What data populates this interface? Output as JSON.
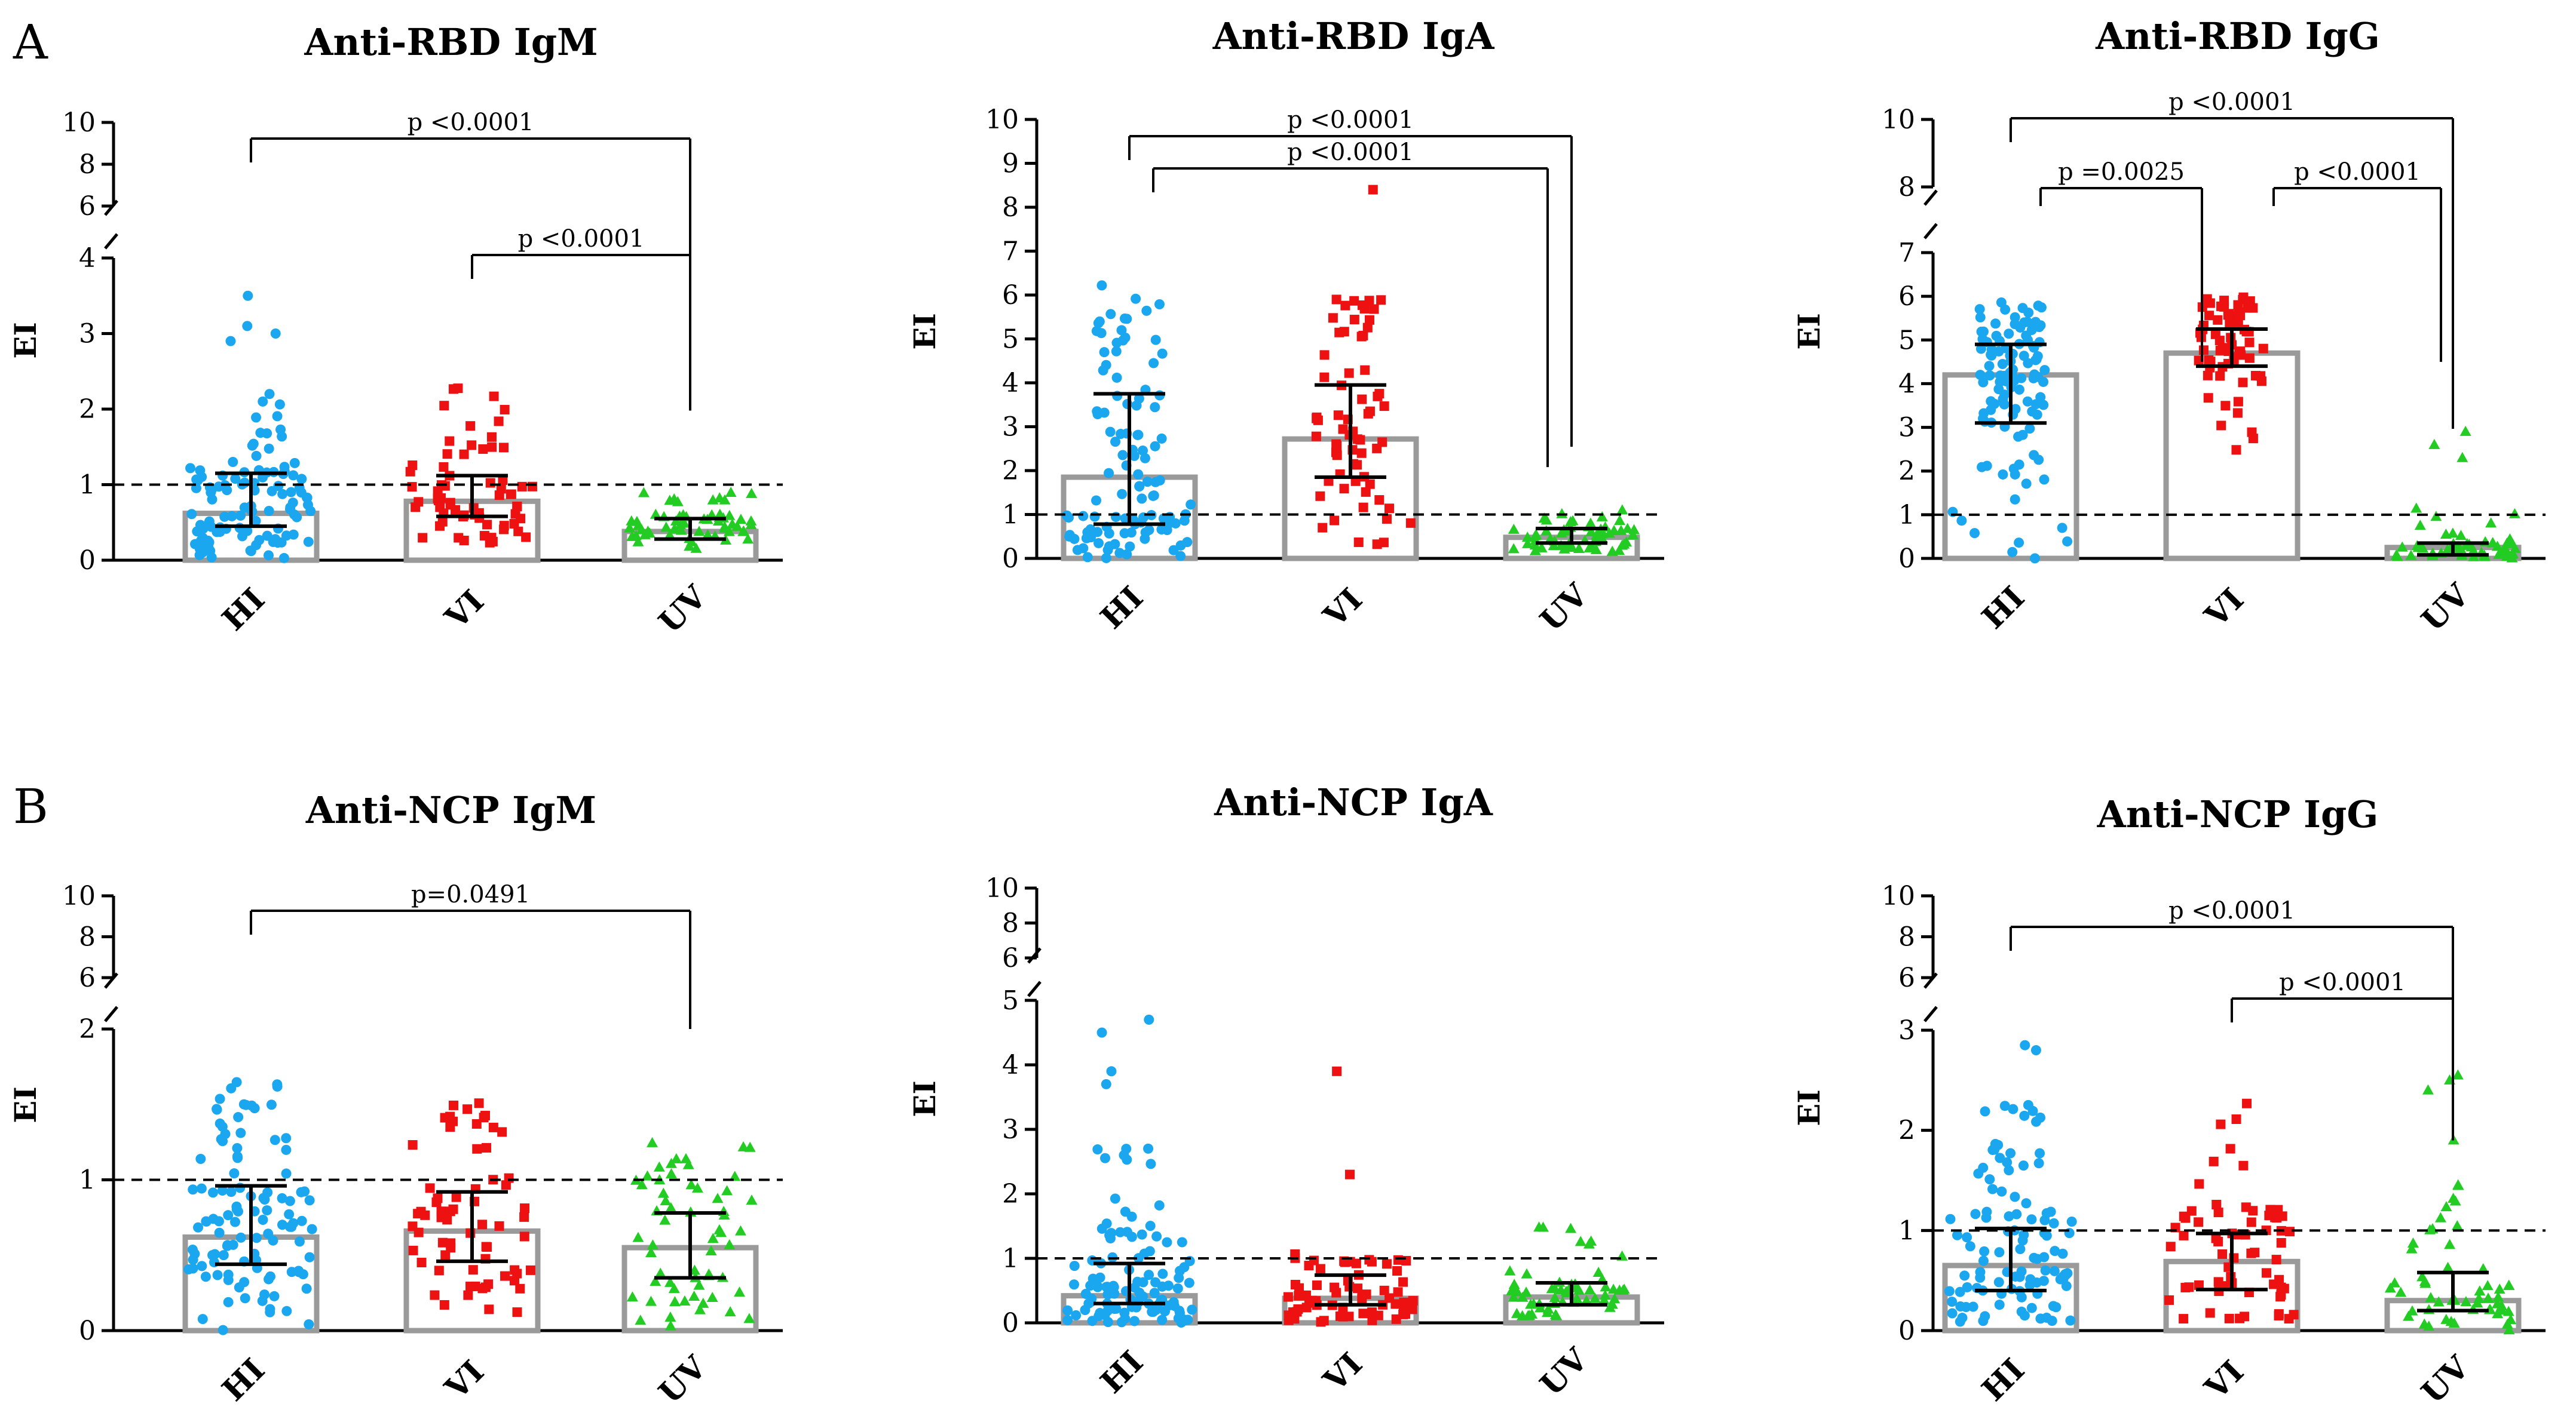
{
  "panel_labels": [
    "A",
    "B"
  ],
  "colors": {
    "HI": "#1aa7f0",
    "VI": "#ee1111",
    "UV": "#22cc22",
    "bar": "#9a9a9a",
    "axis": "#000000"
  },
  "chart_data": [
    {
      "type": "bar",
      "title": "Anti-RBD IgM",
      "ylabel": "EI",
      "categories": [
        "HI",
        "VI",
        "UV"
      ],
      "ylim": [
        0,
        10
      ],
      "axis_break": [
        4,
        5
      ],
      "lower_ticks": [
        0,
        1,
        2,
        3,
        4
      ],
      "upper_ticks": [
        6,
        8,
        10
      ],
      "cutoff": 1.0,
      "medians": [
        0.62,
        0.78,
        0.38
      ],
      "iqr": [
        [
          0.45,
          1.15
        ],
        [
          0.58,
          1.12
        ],
        [
          0.28,
          0.55
        ]
      ],
      "points": [
        {
          "group": "HI",
          "n": 110,
          "ranges": [
            [
              0.02,
              0.6,
              0.42
            ],
            [
              0.6,
              1.2,
              0.42
            ],
            [
              1.2,
              2.1,
              0.14
            ]
          ],
          "extra": [
            3.5,
            3.1,
            3.0,
            2.9,
            2.2,
            2.1
          ]
        },
        {
          "group": "VI",
          "n": 66,
          "ranges": [
            [
              0.2,
              0.8,
              0.5
            ],
            [
              0.8,
              1.5,
              0.35
            ],
            [
              1.5,
              2.45,
              0.15
            ]
          ],
          "extra": []
        },
        {
          "group": "UV",
          "n": 60,
          "ranges": [
            [
              0.15,
              0.65,
              0.85
            ],
            [
              0.65,
              1.0,
              0.15
            ]
          ],
          "extra": []
        }
      ],
      "comparisons": [
        {
          "label": "p <0.0001",
          "from": "HI",
          "to": "UV"
        },
        {
          "label": "p <0.0001",
          "from": "VI",
          "to": "UV"
        }
      ]
    },
    {
      "type": "bar",
      "title": "Anti-RBD IgA",
      "ylabel": "EI",
      "categories": [
        "HI",
        "VI",
        "UV"
      ],
      "ylim": [
        0,
        10
      ],
      "axis_break": null,
      "lower_ticks": [
        0,
        1,
        2,
        3,
        4,
        5,
        6,
        7,
        8,
        9,
        10
      ],
      "upper_ticks": [],
      "cutoff": 1.0,
      "medians": [
        1.85,
        2.72,
        0.48
      ],
      "iqr": [
        [
          0.78,
          3.75
        ],
        [
          1.85,
          3.95
        ],
        [
          0.35,
          0.68
        ]
      ],
      "points": [
        {
          "group": "HI",
          "n": 110,
          "ranges": [
            [
              0.0,
              1.0,
              0.45
            ],
            [
              1.0,
              3.0,
              0.25
            ],
            [
              3.0,
              6.3,
              0.3
            ]
          ],
          "extra": []
        },
        {
          "group": "VI",
          "n": 66,
          "ranges": [
            [
              0.0,
              2.0,
              0.28
            ],
            [
              2.0,
              4.0,
              0.42
            ],
            [
              4.0,
              5.9,
              0.3
            ]
          ],
          "extra": [
            8.4
          ]
        },
        {
          "group": "UV",
          "n": 60,
          "ranges": [
            [
              0.15,
              0.75,
              0.85
            ],
            [
              0.75,
              1.1,
              0.15
            ]
          ],
          "extra": []
        }
      ],
      "comparisons": [
        {
          "label": "p <0.0001",
          "from": "HI",
          "to": "UV"
        },
        {
          "label": "p <0.0001",
          "from": "HI",
          "to": "UV"
        }
      ]
    },
    {
      "type": "bar",
      "title": "Anti-RBD IgG",
      "ylabel": "EI",
      "categories": [
        "HI",
        "VI",
        "UV"
      ],
      "ylim": [
        0,
        10
      ],
      "axis_break": [
        7,
        7.5
      ],
      "lower_ticks": [
        0,
        1,
        2,
        3,
        4,
        5,
        6,
        7
      ],
      "upper_ticks": [
        8,
        10
      ],
      "cutoff": 1.0,
      "medians": [
        4.2,
        4.7,
        0.25
      ],
      "iqr": [
        [
          3.1,
          4.9
        ],
        [
          4.4,
          5.25
        ],
        [
          0.08,
          0.35
        ]
      ],
      "points": [
        {
          "group": "HI",
          "n": 110,
          "ranges": [
            [
              0.0,
              1.0,
              0.06
            ],
            [
              1.0,
              3.0,
              0.14
            ],
            [
              3.0,
              5.9,
              0.8
            ]
          ],
          "extra": []
        },
        {
          "group": "VI",
          "n": 66,
          "ranges": [
            [
              2.3,
              4.0,
              0.12
            ],
            [
              4.0,
              6.0,
              0.88
            ]
          ],
          "extra": []
        },
        {
          "group": "UV",
          "n": 60,
          "ranges": [
            [
              0.0,
              0.4,
              0.8
            ],
            [
              0.4,
              1.2,
              0.15
            ]
          ],
          "extra": [
            2.9,
            2.6,
            2.3
          ]
        }
      ],
      "comparisons": [
        {
          "label": "p <0.0001",
          "from": "HI",
          "to": "UV"
        },
        {
          "label": "p =0.0025",
          "from": "HI",
          "to": "VI"
        },
        {
          "label": "p <0.0001",
          "from": "VI",
          "to": "UV"
        }
      ]
    },
    {
      "type": "bar",
      "title": "Anti-NCP IgM",
      "ylabel": "EI",
      "categories": [
        "HI",
        "VI",
        "UV"
      ],
      "ylim": [
        0,
        10
      ],
      "axis_break": [
        2,
        5
      ],
      "lower_ticks": [
        0,
        1,
        2
      ],
      "upper_ticks": [
        6,
        8,
        10
      ],
      "cutoff": 1.0,
      "medians": [
        0.62,
        0.66,
        0.55
      ],
      "iqr": [
        [
          0.44,
          0.96
        ],
        [
          0.46,
          0.92
        ],
        [
          0.35,
          0.78
        ]
      ],
      "points": [
        {
          "group": "HI",
          "n": 110,
          "ranges": [
            [
              0.0,
              0.5,
              0.3
            ],
            [
              0.5,
              1.0,
              0.45
            ],
            [
              1.0,
              1.65,
              0.25
            ]
          ],
          "extra": []
        },
        {
          "group": "VI",
          "n": 66,
          "ranges": [
            [
              0.12,
              0.5,
              0.3
            ],
            [
              0.5,
              1.0,
              0.45
            ],
            [
              1.0,
              1.55,
              0.25
            ]
          ],
          "extra": []
        },
        {
          "group": "UV",
          "n": 60,
          "ranges": [
            [
              0.02,
              0.5,
              0.4
            ],
            [
              0.5,
              1.0,
              0.42
            ],
            [
              1.0,
              1.25,
              0.18
            ]
          ],
          "extra": []
        }
      ],
      "comparisons": [
        {
          "label": "p=0.0491",
          "from": "HI",
          "to": "UV"
        }
      ]
    },
    {
      "type": "bar",
      "title": "Anti-NCP IgA",
      "ylabel": "EI",
      "categories": [
        "HI",
        "VI",
        "UV"
      ],
      "ylim": [
        0,
        10
      ],
      "axis_break": [
        5,
        5.5
      ],
      "lower_ticks": [
        0,
        1,
        2,
        3,
        4,
        5
      ],
      "upper_ticks": [
        6,
        8,
        10
      ],
      "cutoff": 1.0,
      "medians": [
        0.42,
        0.38,
        0.4
      ],
      "iqr": [
        [
          0.3,
          0.92
        ],
        [
          0.28,
          0.74
        ],
        [
          0.28,
          0.62
        ]
      ],
      "points": [
        {
          "group": "HI",
          "n": 110,
          "ranges": [
            [
              0.0,
              0.6,
              0.6
            ],
            [
              0.6,
              1.6,
              0.3
            ],
            [
              1.6,
              2.9,
              0.1
            ]
          ],
          "extra": [
            4.7,
            4.5,
            3.9,
            3.7
          ]
        },
        {
          "group": "VI",
          "n": 66,
          "ranges": [
            [
              0.0,
              0.6,
              0.72
            ],
            [
              0.6,
              1.2,
              0.28
            ]
          ],
          "extra": [
            3.9,
            2.3
          ]
        },
        {
          "group": "UV",
          "n": 60,
          "ranges": [
            [
              0.1,
              0.6,
              0.8
            ],
            [
              0.6,
              1.5,
              0.2
            ]
          ],
          "extra": []
        }
      ],
      "comparisons": []
    },
    {
      "type": "bar",
      "title": "Anti-NCP IgG",
      "ylabel": "EI",
      "categories": [
        "HI",
        "VI",
        "UV"
      ],
      "ylim": [
        0,
        10
      ],
      "axis_break": [
        3,
        5
      ],
      "lower_ticks": [
        0,
        1,
        2,
        3
      ],
      "upper_ticks": [
        6,
        8,
        10
      ],
      "cutoff": 1.0,
      "medians": [
        0.65,
        0.69,
        0.3
      ],
      "iqr": [
        [
          0.4,
          1.02
        ],
        [
          0.41,
          0.97
        ],
        [
          0.2,
          0.58
        ]
      ],
      "points": [
        {
          "group": "HI",
          "n": 110,
          "ranges": [
            [
              0.05,
              0.6,
              0.45
            ],
            [
              0.6,
              1.3,
              0.3
            ],
            [
              1.3,
              2.3,
              0.23
            ]
          ],
          "extra": [
            2.85,
            2.8
          ]
        },
        {
          "group": "VI",
          "n": 66,
          "ranges": [
            [
              0.1,
              0.6,
              0.4
            ],
            [
              0.6,
              1.3,
              0.5
            ],
            [
              1.3,
              2.35,
              0.1
            ]
          ],
          "extra": []
        },
        {
          "group": "UV",
          "n": 60,
          "ranges": [
            [
              0.0,
              0.5,
              0.65
            ],
            [
              0.5,
              1.5,
              0.25
            ]
          ],
          "extra": [
            2.55,
            2.5,
            2.4,
            1.9
          ]
        }
      ],
      "comparisons": [
        {
          "label": "p <0.0001",
          "from": "HI",
          "to": "UV"
        },
        {
          "label": "p <0.0001",
          "from": "VI",
          "to": "UV"
        }
      ]
    }
  ]
}
